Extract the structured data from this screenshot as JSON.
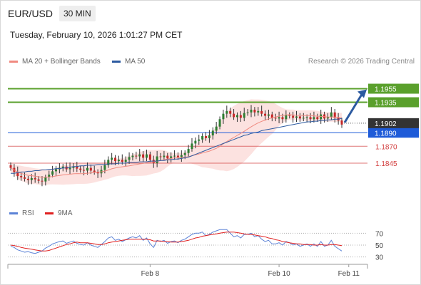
{
  "header": {
    "pair": "EUR/USD",
    "timeframe": "30 MIN"
  },
  "timestamp": "Tuesday, February 10, 2026 1:01:27 PM CET",
  "legend": {
    "ma20": {
      "label": "MA 20 + Bollinger Bands",
      "color": "#f08a80"
    },
    "ma50": {
      "label": "MA 50",
      "color": "#2c5aa0"
    }
  },
  "copyright": "Research © 2026 Trading Central",
  "rsi_legend": {
    "rsi": {
      "label": "RSI",
      "color": "#5b82d6"
    },
    "ma9": {
      "label": "9MA",
      "color": "#e02020"
    }
  },
  "chart_data": [
    {
      "type": "candlestick",
      "title": "",
      "ylim": [
        1.1785,
        1.1985
      ],
      "x_ticks": [
        {
          "label": "Feb 8",
          "index": 40
        },
        {
          "label": "Feb 10",
          "index": 77
        },
        {
          "label": "Feb 11",
          "index": 97
        }
      ],
      "last_price": {
        "value": "1.1902",
        "color": "#333333"
      },
      "levels": [
        {
          "value": "1.1955",
          "kind": "target",
          "color": "#5aa02c"
        },
        {
          "value": "1.1935",
          "kind": "target",
          "color": "#5aa02c"
        },
        {
          "value": "1.1890",
          "kind": "pivot",
          "color": "#1e5bd8"
        },
        {
          "value": "1.1870",
          "kind": "support",
          "color": "#d23c3c"
        },
        {
          "value": "1.1845",
          "kind": "support",
          "color": "#d23c3c"
        }
      ],
      "closes": [
        1.1838,
        1.1832,
        1.1826,
        1.1824,
        1.1822,
        1.182,
        1.1823,
        1.1821,
        1.1819,
        1.1818,
        1.1824,
        1.1828,
        1.1833,
        1.1836,
        1.1838,
        1.184,
        1.1836,
        1.1838,
        1.184,
        1.1837,
        1.1835,
        1.1834,
        1.1838,
        1.1834,
        1.1832,
        1.183,
        1.1835,
        1.1842,
        1.185,
        1.1853,
        1.1848,
        1.185,
        1.1847,
        1.185,
        1.1854,
        1.1856,
        1.1855,
        1.1858,
        1.1853,
        1.1858,
        1.185,
        1.1845,
        1.1855,
        1.1854,
        1.1856,
        1.1852,
        1.1855,
        1.1856,
        1.1854,
        1.1857,
        1.186,
        1.1866,
        1.1874,
        1.1878,
        1.188,
        1.1885,
        1.1882,
        1.1886,
        1.1893,
        1.1899,
        1.191,
        1.1918,
        1.1922,
        1.1918,
        1.1913,
        1.1916,
        1.1912,
        1.1919,
        1.192,
        1.1924,
        1.192,
        1.1922,
        1.1918,
        1.1915,
        1.1917,
        1.1912,
        1.1911,
        1.1913,
        1.191,
        1.1916,
        1.1915,
        1.1912,
        1.1914,
        1.1911,
        1.1912,
        1.1913,
        1.191,
        1.1913,
        1.191,
        1.1917,
        1.1911,
        1.1913,
        1.192,
        1.1912,
        1.1908,
        1.1902
      ],
      "ma50": [
        1.183,
        1.183,
        1.1831,
        1.1832,
        1.1832,
        1.1833,
        1.1833,
        1.1834,
        1.1834,
        1.1835,
        1.1835,
        1.1836,
        1.1836,
        1.1837,
        1.1837,
        1.1838,
        1.1838,
        1.1839,
        1.184,
        1.184,
        1.1841,
        1.1841,
        1.1842,
        1.1842,
        1.1842,
        1.1843,
        1.1843,
        1.1843,
        1.1844,
        1.1844,
        1.1844,
        1.1845,
        1.1845,
        1.1845,
        1.1846,
        1.1846,
        1.1846,
        1.1847,
        1.1847,
        1.1847,
        1.1848,
        1.1848,
        1.1848,
        1.1849,
        1.1849,
        1.185,
        1.185,
        1.1851,
        1.1851,
        1.1852,
        1.1853,
        1.1854,
        1.1856,
        1.1858,
        1.186,
        1.1862,
        1.1864,
        1.1866,
        1.1868,
        1.187,
        1.1872,
        1.1874,
        1.1876,
        1.1878,
        1.188,
        1.1882,
        1.1884,
        1.1886,
        1.1887,
        1.1889,
        1.189,
        1.1891,
        1.1893,
        1.1894,
        1.1895,
        1.1896,
        1.1897,
        1.1898,
        1.1899,
        1.19,
        1.1901,
        1.1902,
        1.1903,
        1.1904,
        1.1905,
        1.1906,
        1.1906,
        1.1907,
        1.1907,
        1.1908,
        1.1908,
        1.1909,
        1.1909,
        1.191,
        1.191,
        1.1911
      ],
      "rsi_panel": {
        "levels": [
          70,
          50,
          30
        ],
        "ylim": [
          20,
          80
        ],
        "rsi": [
          48,
          46,
          42,
          40,
          38,
          39,
          37,
          36,
          38,
          40,
          45,
          48,
          52,
          54,
          56,
          57,
          53,
          55,
          57,
          53,
          51,
          50,
          54,
          50,
          48,
          46,
          51,
          56,
          62,
          64,
          58,
          60,
          56,
          59,
          62,
          64,
          62,
          66,
          58,
          62,
          52,
          46,
          58,
          56,
          58,
          53,
          56,
          57,
          54,
          58,
          60,
          64,
          68,
          70,
          70,
          72,
          66,
          68,
          72,
          74,
          76,
          76,
          76,
          70,
          64,
          66,
          62,
          68,
          68,
          70,
          64,
          66,
          60,
          56,
          58,
          52,
          52,
          54,
          50,
          56,
          54,
          50,
          52,
          48,
          50,
          52,
          48,
          52,
          48,
          56,
          48,
          50,
          58,
          48,
          44,
          40
        ],
        "ma9": [
          50,
          49,
          48,
          46,
          45,
          44,
          43,
          42,
          41,
          40,
          40,
          41,
          43,
          45,
          47,
          49,
          51,
          52,
          54,
          55,
          54,
          54,
          54,
          53,
          52,
          51,
          51,
          52,
          54,
          55,
          56,
          57,
          58,
          59,
          60,
          60,
          60,
          60,
          60,
          60,
          59,
          57,
          57,
          57,
          56,
          56,
          55,
          55,
          55,
          56,
          57,
          58,
          60,
          62,
          63,
          65,
          66,
          67,
          68,
          69,
          70,
          71,
          72,
          72,
          72,
          71,
          70,
          69,
          68,
          68,
          67,
          66,
          65,
          64,
          62,
          61,
          59,
          58,
          56,
          55,
          54,
          53,
          52,
          52,
          51,
          51,
          51,
          50,
          50,
          51,
          50,
          50,
          51,
          51,
          50,
          49
        ]
      }
    }
  ]
}
